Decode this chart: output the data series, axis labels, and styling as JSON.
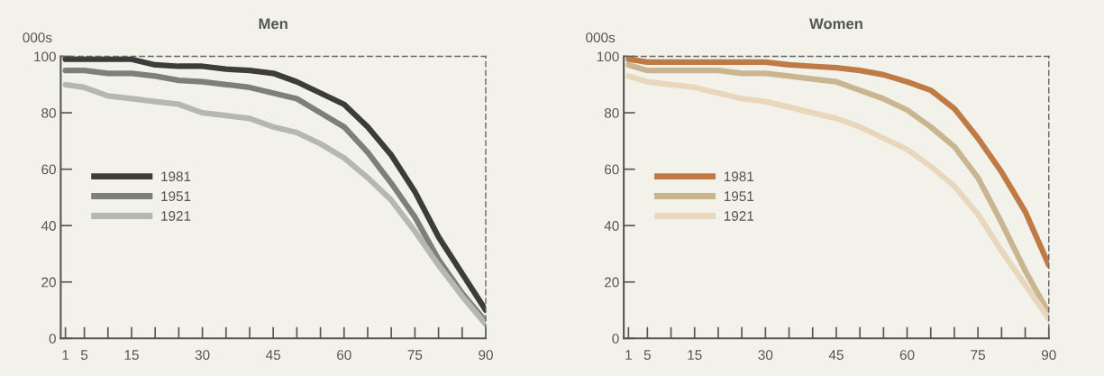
{
  "chart_data": [
    {
      "type": "line",
      "title": "Men",
      "ylabel": "000s",
      "x": [
        1,
        5,
        10,
        15,
        20,
        25,
        30,
        35,
        40,
        45,
        50,
        55,
        60,
        65,
        70,
        75,
        80,
        85,
        90
      ],
      "xlim": [
        0,
        90
      ],
      "ylim": [
        0,
        100
      ],
      "yticks": [
        0,
        20,
        40,
        60,
        80,
        100
      ],
      "xticks": [
        1,
        5,
        {
          "value": 10,
          "label": null
        },
        15,
        {
          "value": 20,
          "label": null
        },
        {
          "value": 25,
          "label": null
        },
        30,
        {
          "value": 35,
          "label": null
        },
        {
          "value": 40,
          "label": null
        },
        45,
        {
          "value": 50,
          "label": null
        },
        {
          "value": 55,
          "label": null
        },
        60,
        {
          "value": 65,
          "label": null
        },
        {
          "value": 70,
          "label": null
        },
        75,
        {
          "value": 80,
          "label": null
        },
        {
          "value": 85,
          "label": null
        },
        90
      ],
      "grid": false,
      "legend": "center left",
      "marker": "none",
      "line_style": "solid",
      "series": [
        {
          "name": "1981",
          "color": "#3c3c3a",
          "values": [
            99,
            99,
            99,
            99,
            97,
            96.5,
            96.5,
            95.5,
            95,
            94,
            91,
            87,
            83,
            75,
            65,
            52,
            36,
            23,
            10
          ]
        },
        {
          "name": "1951",
          "color": "#7d7f79",
          "values": [
            95,
            95,
            94,
            94,
            93,
            91.5,
            91,
            90,
            89,
            87,
            85,
            80,
            75,
            66,
            55,
            43,
            28,
            16,
            6
          ]
        },
        {
          "name": "1921",
          "color": "#b5b7b1",
          "values": [
            90,
            89,
            86,
            85,
            84,
            83,
            80,
            79,
            78,
            75,
            73,
            69,
            64,
            57,
            49,
            38,
            26,
            15,
            5
          ]
        }
      ]
    },
    {
      "type": "line",
      "title": "Women",
      "ylabel": "000s",
      "x": [
        1,
        5,
        10,
        15,
        20,
        25,
        30,
        35,
        40,
        45,
        50,
        55,
        60,
        65,
        70,
        75,
        80,
        85,
        90
      ],
      "xlim": [
        0,
        90
      ],
      "ylim": [
        0,
        100
      ],
      "yticks": [
        0,
        20,
        40,
        60,
        80,
        100
      ],
      "xticks": [
        1,
        5,
        {
          "value": 10,
          "label": null
        },
        15,
        {
          "value": 20,
          "label": null
        },
        {
          "value": 25,
          "label": null
        },
        30,
        {
          "value": 35,
          "label": null
        },
        {
          "value": 40,
          "label": null
        },
        45,
        {
          "value": 50,
          "label": null
        },
        {
          "value": 55,
          "label": null
        },
        60,
        {
          "value": 65,
          "label": null
        },
        {
          "value": 70,
          "label": null
        },
        75,
        {
          "value": 80,
          "label": null
        },
        {
          "value": 85,
          "label": null
        },
        90
      ],
      "grid": false,
      "legend": "center left",
      "marker": "none",
      "line_style": "solid",
      "series": [
        {
          "name": "1981",
          "color": "#c07a45",
          "values": [
            99,
            98,
            98,
            98,
            98,
            98,
            98,
            97,
            96.5,
            96,
            95,
            93.5,
            91,
            88,
            81.5,
            71,
            59,
            45,
            26
          ]
        },
        {
          "name": "1951",
          "color": "#c9b590",
          "values": [
            97,
            95,
            95,
            95,
            95,
            94,
            94,
            93,
            92,
            91,
            88,
            85,
            81,
            75,
            68,
            57,
            41,
            24,
            9
          ]
        },
        {
          "name": "1921",
          "color": "#e8d7bd",
          "values": [
            93,
            91,
            90,
            89,
            87,
            85,
            84,
            82,
            80,
            78,
            75,
            71,
            67,
            61,
            54,
            44,
            31,
            19,
            7
          ]
        }
      ]
    }
  ]
}
